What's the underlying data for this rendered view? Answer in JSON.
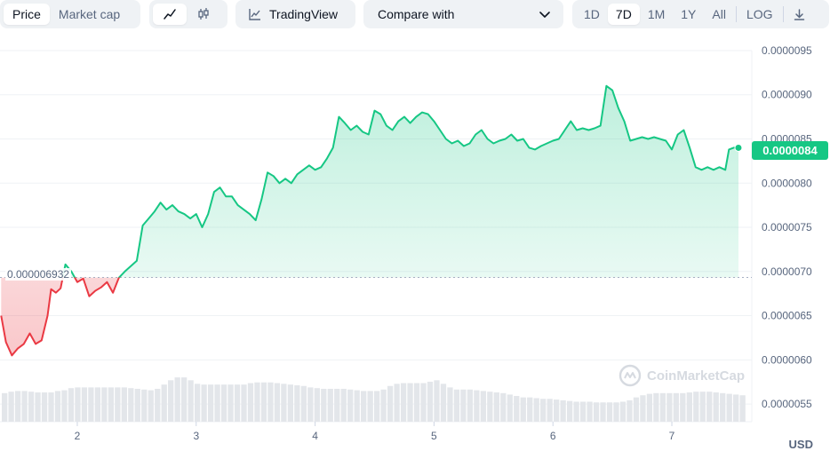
{
  "toolbar": {
    "view_tabs": [
      {
        "label": "Price",
        "active": true
      },
      {
        "label": "Market cap",
        "active": false
      }
    ],
    "chart_type": [
      {
        "icon": "line-chart-icon",
        "active": true
      },
      {
        "icon": "candlestick-icon",
        "active": false
      }
    ],
    "tradingview_label": "TradingView",
    "compare_label": "Compare with",
    "ranges": [
      {
        "label": "1D",
        "active": false
      },
      {
        "label": "7D",
        "active": true
      },
      {
        "label": "1M",
        "active": false
      },
      {
        "label": "1Y",
        "active": false
      },
      {
        "label": "All",
        "active": false
      },
      {
        "label": "LOG",
        "active": false
      }
    ],
    "download_icon": "download-icon"
  },
  "chart": {
    "open_price_label": "0.000006932",
    "current_price_label": "0.0000084",
    "currency": "USD",
    "watermark": "CoinMarketCap",
    "colors": {
      "up": "#16c784",
      "down": "#ea3943",
      "axis_text": "#58667e",
      "volume": "#e3e6ea"
    }
  },
  "chart_data": {
    "type": "line",
    "x_ticks": [
      "2",
      "3",
      "4",
      "5",
      "6",
      "7"
    ],
    "y_ticks": [
      "0.0000055",
      "0.0000060",
      "0.0000065",
      "0.0000070",
      "0.0000075",
      "0.0000080",
      "0.0000085",
      "0.0000090",
      "0.0000095"
    ],
    "ylim": [
      5.3e-06,
      9.6e-06
    ],
    "xlim": [
      1.35,
      7.65
    ],
    "baseline": 6.932e-06,
    "grid": true,
    "series": [
      {
        "values": [
          [
            1.36,
            6.5e-06
          ],
          [
            1.4,
            6.2e-06
          ],
          [
            1.45,
            6.05e-06
          ],
          [
            1.5,
            6.13e-06
          ],
          [
            1.55,
            6.18e-06
          ],
          [
            1.6,
            6.3e-06
          ],
          [
            1.65,
            6.18e-06
          ],
          [
            1.7,
            6.22e-06
          ],
          [
            1.75,
            6.5e-06
          ],
          [
            1.78,
            6.8e-06
          ],
          [
            1.82,
            6.76e-06
          ],
          [
            1.86,
            6.81e-06
          ],
          [
            1.9,
            7.08e-06
          ],
          [
            1.95,
            7e-06
          ],
          [
            2.0,
            6.88e-06
          ],
          [
            2.05,
            6.92e-06
          ],
          [
            2.1,
            6.72e-06
          ],
          [
            2.15,
            6.78e-06
          ],
          [
            2.2,
            6.82e-06
          ],
          [
            2.25,
            6.88e-06
          ],
          [
            2.3,
            6.76e-06
          ],
          [
            2.35,
            6.93e-06
          ],
          [
            2.4,
            7e-06
          ],
          [
            2.45,
            7.06e-06
          ],
          [
            2.5,
            7.12e-06
          ],
          [
            2.55,
            7.52e-06
          ],
          [
            2.6,
            7.6e-06
          ],
          [
            2.65,
            7.68e-06
          ],
          [
            2.7,
            7.78e-06
          ],
          [
            2.75,
            7.7e-06
          ],
          [
            2.8,
            7.75e-06
          ],
          [
            2.85,
            7.68e-06
          ],
          [
            2.9,
            7.65e-06
          ],
          [
            2.95,
            7.6e-06
          ],
          [
            3.0,
            7.65e-06
          ],
          [
            3.05,
            7.5e-06
          ],
          [
            3.1,
            7.65e-06
          ],
          [
            3.15,
            7.9e-06
          ],
          [
            3.2,
            7.95e-06
          ],
          [
            3.25,
            7.85e-06
          ],
          [
            3.3,
            7.85e-06
          ],
          [
            3.35,
            7.75e-06
          ],
          [
            3.4,
            7.7e-06
          ],
          [
            3.45,
            7.65e-06
          ],
          [
            3.5,
            7.58e-06
          ],
          [
            3.55,
            7.82e-06
          ],
          [
            3.6,
            8.12e-06
          ],
          [
            3.65,
            8.08e-06
          ],
          [
            3.7,
            8e-06
          ],
          [
            3.75,
            8.05e-06
          ],
          [
            3.8,
            8e-06
          ],
          [
            3.85,
            8.1e-06
          ],
          [
            3.9,
            8.15e-06
          ],
          [
            3.95,
            8.2e-06
          ],
          [
            4.0,
            8.15e-06
          ],
          [
            4.05,
            8.18e-06
          ],
          [
            4.1,
            8.28e-06
          ],
          [
            4.15,
            8.4e-06
          ],
          [
            4.2,
            8.75e-06
          ],
          [
            4.25,
            8.68e-06
          ],
          [
            4.3,
            8.6e-06
          ],
          [
            4.35,
            8.65e-06
          ],
          [
            4.4,
            8.58e-06
          ],
          [
            4.45,
            8.55e-06
          ],
          [
            4.5,
            8.82e-06
          ],
          [
            4.55,
            8.78e-06
          ],
          [
            4.6,
            8.65e-06
          ],
          [
            4.65,
            8.6e-06
          ],
          [
            4.7,
            8.7e-06
          ],
          [
            4.75,
            8.75e-06
          ],
          [
            4.8,
            8.68e-06
          ],
          [
            4.85,
            8.75e-06
          ],
          [
            4.9,
            8.8e-06
          ],
          [
            4.95,
            8.78e-06
          ],
          [
            5.0,
            8.7e-06
          ],
          [
            5.05,
            8.6e-06
          ],
          [
            5.1,
            8.5e-06
          ],
          [
            5.15,
            8.45e-06
          ],
          [
            5.2,
            8.48e-06
          ],
          [
            5.25,
            8.42e-06
          ],
          [
            5.3,
            8.45e-06
          ],
          [
            5.35,
            8.55e-06
          ],
          [
            5.4,
            8.6e-06
          ],
          [
            5.45,
            8.5e-06
          ],
          [
            5.5,
            8.45e-06
          ],
          [
            5.55,
            8.48e-06
          ],
          [
            5.6,
            8.5e-06
          ],
          [
            5.65,
            8.55e-06
          ],
          [
            5.7,
            8.48e-06
          ],
          [
            5.75,
            8.5e-06
          ],
          [
            5.8,
            8.4e-06
          ],
          [
            5.85,
            8.38e-06
          ],
          [
            5.9,
            8.42e-06
          ],
          [
            5.95,
            8.45e-06
          ],
          [
            6.0,
            8.48e-06
          ],
          [
            6.05,
            8.5e-06
          ],
          [
            6.1,
            8.6e-06
          ],
          [
            6.15,
            8.7e-06
          ],
          [
            6.2,
            8.6e-06
          ],
          [
            6.25,
            8.62e-06
          ],
          [
            6.3,
            8.6e-06
          ],
          [
            6.35,
            8.62e-06
          ],
          [
            6.4,
            8.65e-06
          ],
          [
            6.45,
            9.1e-06
          ],
          [
            6.5,
            9.05e-06
          ],
          [
            6.55,
            8.85e-06
          ],
          [
            6.6,
            8.7e-06
          ],
          [
            6.65,
            8.48e-06
          ],
          [
            6.7,
            8.5e-06
          ],
          [
            6.75,
            8.52e-06
          ],
          [
            6.8,
            8.5e-06
          ],
          [
            6.85,
            8.52e-06
          ],
          [
            6.9,
            8.5e-06
          ],
          [
            6.95,
            8.48e-06
          ],
          [
            7.0,
            8.38e-06
          ],
          [
            7.05,
            8.55e-06
          ],
          [
            7.1,
            8.6e-06
          ],
          [
            7.15,
            8.4e-06
          ],
          [
            7.2,
            8.18e-06
          ],
          [
            7.25,
            8.15e-06
          ],
          [
            7.3,
            8.18e-06
          ],
          [
            7.35,
            8.15e-06
          ],
          [
            7.4,
            8.18e-06
          ],
          [
            7.45,
            8.15e-06
          ],
          [
            7.48,
            8.38e-06
          ],
          [
            7.52,
            8.4e-06
          ],
          [
            7.56,
            8.4e-06
          ]
        ]
      }
    ],
    "volume": [
      0.4,
      0.42,
      0.43,
      0.43,
      0.42,
      0.41,
      0.41,
      0.41,
      0.43,
      0.44,
      0.47,
      0.48,
      0.48,
      0.48,
      0.48,
      0.48,
      0.48,
      0.48,
      0.48,
      0.47,
      0.46,
      0.45,
      0.44,
      0.46,
      0.52,
      0.58,
      0.62,
      0.62,
      0.58,
      0.53,
      0.52,
      0.52,
      0.52,
      0.52,
      0.52,
      0.52,
      0.52,
      0.54,
      0.55,
      0.55,
      0.55,
      0.54,
      0.53,
      0.52,
      0.51,
      0.5,
      0.48,
      0.47,
      0.46,
      0.46,
      0.46,
      0.46,
      0.45,
      0.44,
      0.43,
      0.43,
      0.43,
      0.45,
      0.5,
      0.53,
      0.54,
      0.54,
      0.54,
      0.54,
      0.56,
      0.58,
      0.53,
      0.48,
      0.45,
      0.45,
      0.45,
      0.44,
      0.43,
      0.42,
      0.41,
      0.4,
      0.38,
      0.36,
      0.34,
      0.34,
      0.33,
      0.32,
      0.32,
      0.31,
      0.3,
      0.29,
      0.28,
      0.28,
      0.28,
      0.27,
      0.27,
      0.27,
      0.27,
      0.28,
      0.3,
      0.34,
      0.37,
      0.39,
      0.4,
      0.4,
      0.4,
      0.4,
      0.4,
      0.41,
      0.42,
      0.42,
      0.42,
      0.41,
      0.4,
      0.39,
      0.38,
      0.37
    ]
  }
}
